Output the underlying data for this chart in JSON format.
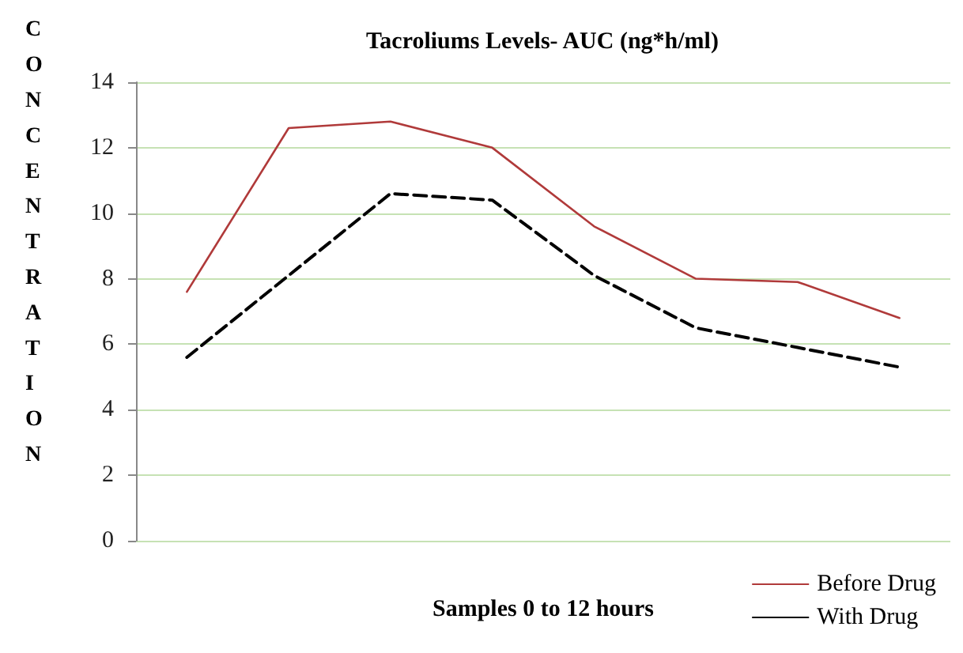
{
  "chart_data": {
    "type": "line",
    "title": "Tacroliums Levels- AUC (ng*h/ml)",
    "xlabel": "Samples 0 to 12 hours",
    "ylabel": "CONCENTRATION",
    "categories": [
      null,
      null,
      null,
      null,
      null,
      null,
      null,
      null
    ],
    "series": [
      {
        "name": "Before Drug",
        "color": "#b03a3a",
        "line_style": "solid",
        "values": [
          7.6,
          12.6,
          12.8,
          12.0,
          9.6,
          8.0,
          7.9,
          6.8
        ]
      },
      {
        "name": "With Drug",
        "color": "#000000",
        "line_style": "dashed",
        "values": [
          5.6,
          8.1,
          10.6,
          10.4,
          8.1,
          6.5,
          5.9,
          5.3
        ]
      }
    ],
    "ylim": [
      0,
      14
    ],
    "yticks": [
      0,
      2,
      4,
      6,
      8,
      10,
      12,
      14
    ],
    "grid": "y",
    "legend": "bottom right",
    "marker": "none"
  }
}
